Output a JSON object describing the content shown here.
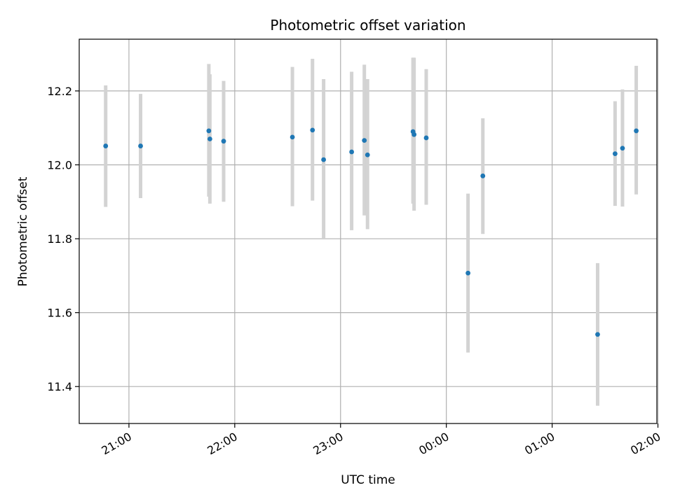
{
  "chart_data": {
    "type": "scatter",
    "title": "Photometric offset variation",
    "xlabel": "UTC time",
    "ylabel": "Photometric offset",
    "x_unit": "hours after 21:00 UTC",
    "xlim": [
      -0.47,
      4.99
    ],
    "ylim": [
      11.3,
      12.34
    ],
    "x_ticks": [
      {
        "value": 0,
        "label": "21:00"
      },
      {
        "value": 1,
        "label": "22:00"
      },
      {
        "value": 2,
        "label": "23:00"
      },
      {
        "value": 3,
        "label": "00:00"
      },
      {
        "value": 4,
        "label": "01:00"
      },
      {
        "value": 5,
        "label": "02:00"
      }
    ],
    "y_ticks": [
      {
        "value": 11.4,
        "label": "11.4"
      },
      {
        "value": 11.6,
        "label": "11.6"
      },
      {
        "value": 11.8,
        "label": "11.8"
      },
      {
        "value": 12.0,
        "label": "12.0"
      },
      {
        "value": 12.2,
        "label": "12.2"
      }
    ],
    "grid": true,
    "marker_color": "#1f77b4",
    "errorbar_color": "#d3d3d3",
    "points": [
      {
        "x": -0.22,
        "y": 12.051,
        "ylow": 11.886,
        "yhigh": 12.215
      },
      {
        "x": 0.11,
        "y": 12.051,
        "ylow": 11.91,
        "yhigh": 12.192
      },
      {
        "x": 0.755,
        "y": 12.092,
        "ylow": 11.914,
        "yhigh": 12.273
      },
      {
        "x": 0.765,
        "y": 12.07,
        "ylow": 11.895,
        "yhigh": 12.245
      },
      {
        "x": 0.895,
        "y": 12.064,
        "ylow": 11.9,
        "yhigh": 12.227
      },
      {
        "x": 1.545,
        "y": 12.075,
        "ylow": 11.888,
        "yhigh": 12.265
      },
      {
        "x": 1.735,
        "y": 12.094,
        "ylow": 11.903,
        "yhigh": 12.287
      },
      {
        "x": 1.84,
        "y": 12.014,
        "ylow": 11.8,
        "yhigh": 12.232
      },
      {
        "x": 2.105,
        "y": 12.035,
        "ylow": 11.823,
        "yhigh": 12.252
      },
      {
        "x": 2.225,
        "y": 12.066,
        "ylow": 11.863,
        "yhigh": 12.271
      },
      {
        "x": 2.255,
        "y": 12.027,
        "ylow": 11.826,
        "yhigh": 12.232
      },
      {
        "x": 2.685,
        "y": 12.09,
        "ylow": 11.895,
        "yhigh": 12.29
      },
      {
        "x": 2.695,
        "y": 12.082,
        "ylow": 11.876,
        "yhigh": 12.29
      },
      {
        "x": 2.81,
        "y": 12.073,
        "ylow": 11.892,
        "yhigh": 12.259
      },
      {
        "x": 3.205,
        "y": 11.707,
        "ylow": 11.492,
        "yhigh": 11.922
      },
      {
        "x": 3.345,
        "y": 11.97,
        "ylow": 11.813,
        "yhigh": 12.126
      },
      {
        "x": 4.43,
        "y": 11.541,
        "ylow": 11.348,
        "yhigh": 11.734
      },
      {
        "x": 4.595,
        "y": 12.03,
        "ylow": 11.889,
        "yhigh": 12.172
      },
      {
        "x": 4.665,
        "y": 12.045,
        "ylow": 11.887,
        "yhigh": 12.204
      },
      {
        "x": 4.795,
        "y": 12.092,
        "ylow": 11.92,
        "yhigh": 12.268
      }
    ]
  }
}
